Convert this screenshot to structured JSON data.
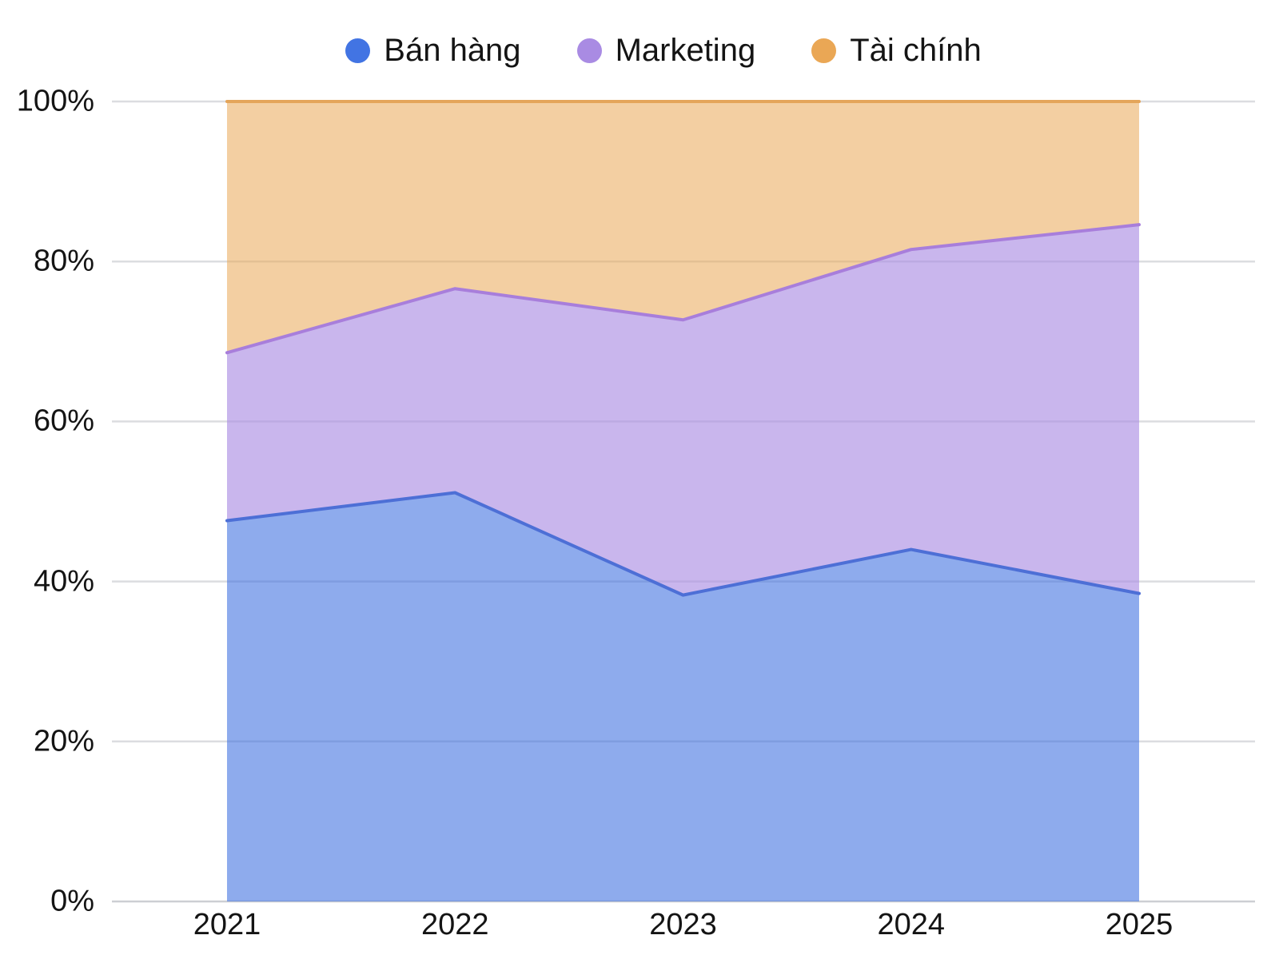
{
  "chart_data": {
    "type": "area",
    "variant": "100-percent-stacked",
    "title": "",
    "xlabel": "",
    "ylabel": "",
    "categories": [
      "2021",
      "2022",
      "2023",
      "2024",
      "2025"
    ],
    "series": [
      {
        "name": "Bán hàng",
        "values": [
          47.6,
          51.1,
          38.3,
          44.0,
          38.5
        ],
        "fill_color": "rgba(61,111,224,0.58)",
        "line_color": "#4D6FD6",
        "dot_color": "#4274E3"
      },
      {
        "name": "Marketing",
        "values": [
          21.0,
          25.5,
          34.4,
          37.5,
          46.1
        ],
        "fill_color": "rgba(169,139,227,0.63)",
        "line_color": "#A87EDB",
        "dot_color": "#A98BE3"
      },
      {
        "name": "Tài chính",
        "values": [
          31.4,
          23.4,
          27.3,
          18.5,
          15.4
        ],
        "fill_color": "rgba(234,167,85,0.55)",
        "line_color": "#E4A55A",
        "dot_color": "#EAA755"
      }
    ],
    "y_ticks": [
      {
        "label": "0%",
        "value": 0
      },
      {
        "label": "20%",
        "value": 20
      },
      {
        "label": "40%",
        "value": 40
      },
      {
        "label": "60%",
        "value": 60
      },
      {
        "label": "80%",
        "value": 80
      },
      {
        "label": "100%",
        "value": 100
      }
    ],
    "ylim": [
      0,
      100
    ],
    "grid": true,
    "legend_position": "top",
    "gridline_color": "#DCDDE0",
    "axis_line_color": "#CDCFD3",
    "text_color": "#141414"
  }
}
